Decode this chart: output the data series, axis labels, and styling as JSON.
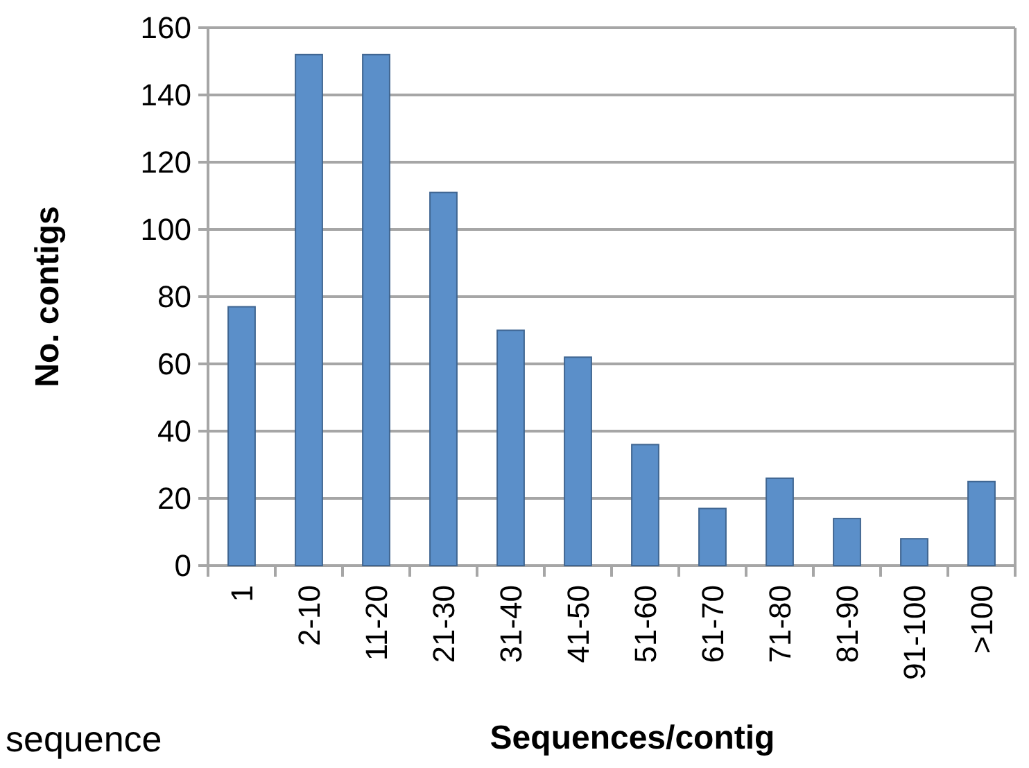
{
  "chart_data": {
    "type": "bar",
    "categories": [
      "1",
      "2-10",
      "11-20",
      "21-30",
      "31-40",
      "41-50",
      "51-60",
      "61-70",
      "71-80",
      "81-90",
      "91-100",
      ">100"
    ],
    "values": [
      77,
      152,
      152,
      111,
      70,
      62,
      36,
      17,
      26,
      14,
      8,
      25
    ],
    "color": "#5b8fc9",
    "xlabel": "Sequences/contig",
    "ylabel": "No. contigs",
    "ylim": [
      0,
      160
    ],
    "yticks": [
      0,
      20,
      40,
      60,
      80,
      100,
      120,
      140,
      160
    ],
    "grid": "y",
    "annotations": [
      "sequence"
    ]
  }
}
